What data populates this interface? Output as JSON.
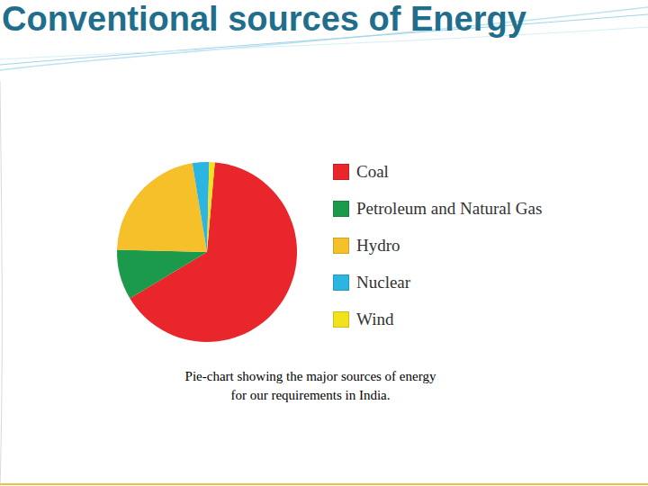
{
  "slide": {
    "title": "Conventional sources of Energy"
  },
  "chart_data": {
    "type": "pie",
    "categories": [
      "Coal",
      "Petroleum and Natural Gas",
      "Hydro",
      "Nuclear",
      "Wind"
    ],
    "values": [
      65,
      9,
      22,
      3,
      1
    ],
    "colors": [
      "#e8262b",
      "#1a9a4a",
      "#f5c02a",
      "#2cb5e0",
      "#f2e21c"
    ],
    "legend": "right",
    "caption": "Pie-chart showing the major sources of energy for our requirements in India."
  }
}
